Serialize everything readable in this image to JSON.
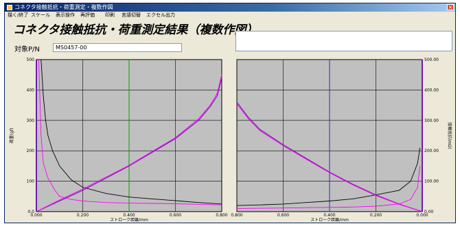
{
  "window": {
    "title": "コネクタ接触抵抗・荷重測定・複数作図",
    "close_glyph": "×",
    "icon": "app-window-icon"
  },
  "menu": [
    "描く/終了",
    "スケール",
    "表示操作",
    "再評価",
    "印刷",
    "言語切替",
    "エクセル出力"
  ],
  "heading": "コネクタ接触抵抗・荷重測定結果（複数作図）",
  "part_number": {
    "label": "対象P/N",
    "value": "MS0457-00"
  },
  "colors": {
    "plot_bg": "#c0c0c0",
    "black_series": "#000000",
    "magenta_series": "#ff00ff",
    "purple_series": "#6a1fa8",
    "green_marker": "#00a000",
    "blue_marker": "#2a2ad0"
  },
  "chart_data": [
    {
      "type": "line",
      "panel": "left",
      "xlabel": "ストローク距離/mm",
      "ylabel": "荷重(gf)",
      "xlim": [
        0,
        0.8
      ],
      "ylim": [
        0,
        500
      ],
      "x_ticks": [
        "0.000",
        "0.200",
        "0.400",
        "0.600",
        "0.800"
      ],
      "y_ticks": [
        "0.0",
        "100",
        "200",
        "300",
        "400",
        "500"
      ],
      "marker_x": 0.4,
      "series": [
        {
          "color": "black",
          "axis": "resistance",
          "x": [
            0.02,
            0.03,
            0.04,
            0.05,
            0.07,
            0.1,
            0.15,
            0.2,
            0.3,
            0.4,
            0.5,
            0.6,
            0.7,
            0.8
          ],
          "y": [
            500,
            380,
            300,
            250,
            200,
            150,
            105,
            80,
            60,
            48,
            42,
            36,
            30,
            25
          ]
        },
        {
          "color": "magenta",
          "axis": "resistance",
          "x": [
            0.01,
            0.02,
            0.03,
            0.05,
            0.08,
            0.1,
            0.15,
            0.2,
            0.3,
            0.4,
            0.5,
            0.6,
            0.7,
            0.8
          ],
          "y": [
            500,
            250,
            160,
            110,
            70,
            50,
            40,
            35,
            30,
            28,
            27,
            26,
            24,
            22
          ]
        },
        {
          "color": "purple",
          "axis": "load",
          "x": [
            0,
            0.1,
            0.2,
            0.3,
            0.4,
            0.5,
            0.6,
            0.7,
            0.75,
            0.78,
            0.8
          ],
          "y": [
            0,
            35,
            70,
            110,
            150,
            195,
            240,
            300,
            345,
            380,
            440
          ]
        },
        {
          "color": "magenta",
          "axis": "load",
          "x": [
            0,
            0.1,
            0.2,
            0.3,
            0.4,
            0.5,
            0.6,
            0.7,
            0.75,
            0.78,
            0.8
          ],
          "y": [
            0,
            38,
            74,
            113,
            152,
            198,
            243,
            305,
            350,
            388,
            450
          ]
        }
      ]
    },
    {
      "type": "line",
      "panel": "right",
      "xlabel": "ストローク距離/mm",
      "ylabel": "接触抵抗(mΩ)",
      "xlim": [
        0.8,
        0
      ],
      "ylim": [
        0,
        500
      ],
      "x_ticks": [
        "0.800",
        "0.600",
        "0.400",
        "0.200",
        "0.000"
      ],
      "y_ticks": [
        "0.00",
        "100.00",
        "200.00",
        "300.00",
        "400.00",
        "500.00"
      ],
      "marker_x": 0.4,
      "series": [
        {
          "color": "black",
          "axis": "resistance",
          "x": [
            0.8,
            0.7,
            0.6,
            0.5,
            0.4,
            0.3,
            0.2,
            0.1,
            0.05,
            0.02,
            0.01
          ],
          "y": [
            20,
            22,
            25,
            30,
            35,
            42,
            55,
            70,
            100,
            160,
            210
          ]
        },
        {
          "color": "magenta",
          "axis": "resistance",
          "x": [
            0.8,
            0.7,
            0.6,
            0.5,
            0.4,
            0.3,
            0.2,
            0.1,
            0.05,
            0.02,
            0.01
          ],
          "y": [
            10,
            11,
            12,
            13,
            14,
            15,
            18,
            25,
            40,
            80,
            150
          ]
        },
        {
          "color": "purple",
          "axis": "load",
          "x": [
            0.8,
            0.75,
            0.7,
            0.6,
            0.5,
            0.4,
            0.3,
            0.2,
            0.1,
            0.0
          ],
          "y": [
            360,
            310,
            270,
            220,
            175,
            130,
            90,
            55,
            25,
            0
          ]
        },
        {
          "color": "magenta",
          "axis": "load",
          "x": [
            0.8,
            0.75,
            0.7,
            0.6,
            0.5,
            0.4,
            0.3,
            0.2,
            0.1,
            0.0
          ],
          "y": [
            355,
            305,
            266,
            217,
            172,
            128,
            88,
            53,
            24,
            0
          ]
        }
      ]
    }
  ]
}
